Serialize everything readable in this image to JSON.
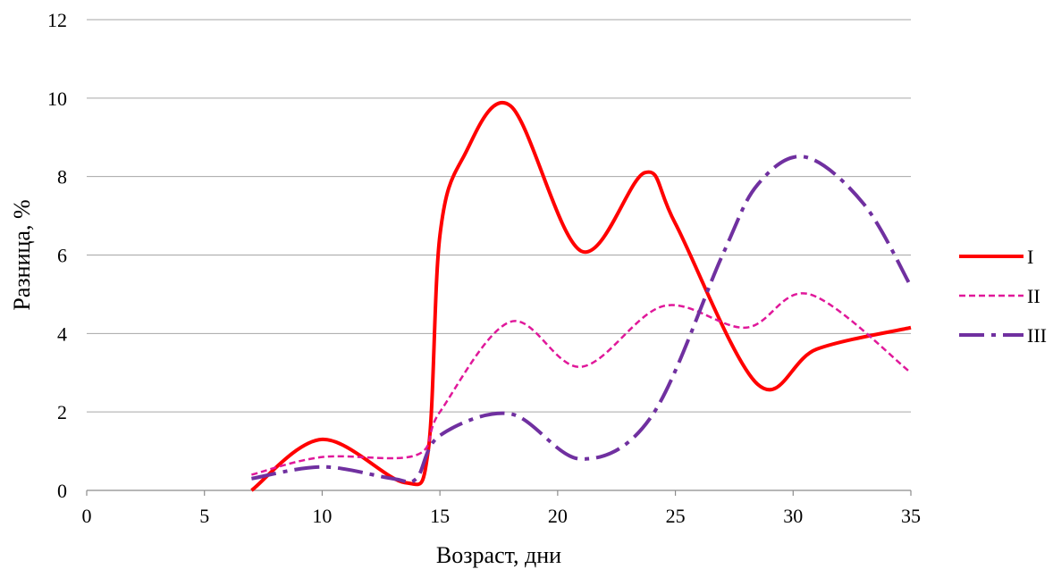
{
  "chart_data": {
    "type": "line",
    "title": "",
    "xlabel": "Возраст, дни",
    "ylabel": "Разница, %",
    "xlim": [
      0,
      35
    ],
    "ylim": [
      0,
      12
    ],
    "xticks": [
      0,
      5,
      10,
      15,
      20,
      25,
      30,
      35
    ],
    "yticks": [
      0,
      2,
      4,
      6,
      8,
      10,
      12
    ],
    "grid": "horizontal",
    "legend_position": "right",
    "series": [
      {
        "name": "I",
        "color": "#ff0000",
        "style": "solid",
        "x": [
          7,
          10,
          13.5,
          14.5,
          15,
          16,
          18,
          21,
          23.7,
          25,
          28.5,
          31,
          35
        ],
        "y": [
          0,
          1.3,
          0.2,
          1.0,
          6.5,
          8.5,
          9.8,
          6.1,
          8.1,
          6.8,
          2.7,
          3.6,
          4.15
        ]
      },
      {
        "name": "II",
        "color": "#e0189a",
        "style": "dashed",
        "x": [
          7,
          10,
          14,
          15,
          18,
          21,
          24.5,
          28,
          30.7,
          35
        ],
        "y": [
          0.4,
          0.85,
          0.9,
          2.0,
          4.3,
          3.15,
          4.7,
          4.15,
          5.0,
          3.0
        ],
        "_": ""
      },
      {
        "name": "III",
        "color": "#7030a0",
        "style": "dashdot",
        "x": [
          7,
          10,
          13,
          14,
          15,
          18,
          21,
          24,
          27,
          28.5,
          30.5,
          33,
          35
        ],
        "y": [
          0.3,
          0.6,
          0.3,
          0.3,
          1.4,
          1.95,
          0.8,
          1.9,
          6.0,
          7.8,
          8.5,
          7.3,
          5.2
        ]
      }
    ]
  }
}
